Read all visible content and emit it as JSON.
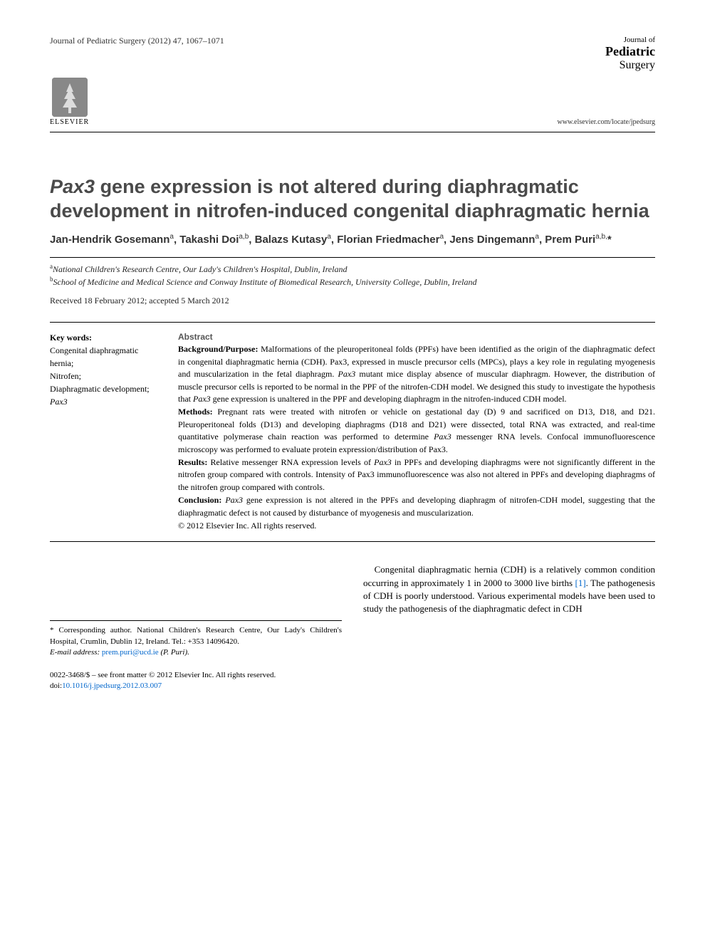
{
  "header": {
    "citation": "Journal of Pediatric Surgery (2012) 47, 1067–1071",
    "journal_label": "Journal of",
    "journal_main": "Pediatric",
    "journal_sub": "Surgery",
    "journal_url": "www.elsevier.com/locate/jpedsurg",
    "publisher": "ELSEVIER"
  },
  "article": {
    "title_prefix_italic": "Pax3",
    "title_rest": " gene expression is not altered during diaphragmatic development in nitrofen-induced congenital diaphragmatic hernia",
    "authors_html": "Jan-Hendrik Gosemann<sup>a</sup>, Takashi Doi<sup>a,b</sup>, Balazs Kutasy<sup>a</sup>, Florian Friedmacher<sup>a</sup>, Jens Dingemann<sup>a</sup>, Prem Puri<sup>a,b,</sup>*",
    "affiliations": [
      {
        "sup": "a",
        "text": "National Children's Research Centre, Our Lady's Children's Hospital, Dublin, Ireland"
      },
      {
        "sup": "b",
        "text": "School of Medicine and Medical Science and Conway Institute of Biomedical Research, University College, Dublin, Ireland"
      }
    ],
    "dates": "Received 18 February 2012; accepted 5 March 2012"
  },
  "keywords": {
    "label": "Key words:",
    "items": "Congenital diaphragmatic hernia;\nNitrofen;\nDiaphragmatic development;\nPax3"
  },
  "abstract": {
    "heading": "Abstract",
    "background_label": "Background/Purpose:",
    "background_text": " Malformations of the pleuroperitoneal folds (PPFs) have been identified as the origin of the diaphragmatic defect in congenital diaphragmatic hernia (CDH). Pax3, expressed in muscle precursor cells (MPCs), plays a key role in regulating myogenesis and muscularization in the fetal diaphragm. Pax3 mutant mice display absence of muscular diaphragm. However, the distribution of muscle precursor cells is reported to be normal in the PPF of the nitrofen-CDH model. We designed this study to investigate the hypothesis that Pax3 gene expression is unaltered in the PPF and developing diaphragm in the nitrofen-induced CDH model.",
    "methods_label": "Methods:",
    "methods_text": " Pregnant rats were treated with nitrofen or vehicle on gestational day (D) 9 and sacrificed on D13, D18, and D21. Pleuroperitoneal folds (D13) and developing diaphragms (D18 and D21) were dissected, total RNA was extracted, and real-time quantitative polymerase chain reaction was performed to determine Pax3 messenger RNA levels. Confocal immunofluorescence microscopy was performed to evaluate protein expression/distribution of Pax3.",
    "results_label": "Results:",
    "results_text": " Relative messenger RNA expression levels of Pax3 in PPFs and developing diaphragms were not significantly different in the nitrofen group compared with controls. Intensity of Pax3 immunofluorescence was also not altered in PPFs and developing diaphragms of the nitrofen group compared with controls.",
    "conclusion_label": "Conclusion:",
    "conclusion_text": " Pax3 gene expression is not altered in the PPFs and developing diaphragm of nitrofen-CDH model, suggesting that the diaphragmatic defect is not caused by disturbance of myogenesis and muscularization.",
    "copyright": "© 2012 Elsevier Inc. All rights reserved."
  },
  "corresponding": {
    "text": "* Corresponding author. National Children's Research Centre, Our Lady's Children's Hospital, Crumlin, Dublin 12, Ireland. Tel.: +353 14096420.",
    "email_label": "E-mail address:",
    "email": "prem.puri@ucd.ie",
    "email_attribution": "(P. Puri)."
  },
  "footer": {
    "issn_line": "0022-3468/$ – see front matter © 2012 Elsevier Inc. All rights reserved.",
    "doi_prefix": "doi:",
    "doi": "10.1016/j.jpedsurg.2012.03.007"
  },
  "body": {
    "intro_part1": "Congenital diaphragmatic hernia (CDH) is a relatively common condition occurring in approximately 1 in 2000 to 3000 live births ",
    "ref1": "[1]",
    "intro_part2": ". The pathogenesis of CDH is poorly understood. Various experimental models have been used to study the pathogenesis of the diaphragmatic defect in CDH"
  },
  "colors": {
    "title_color": "#4a4a4a",
    "link_color": "#0066cc",
    "text_color": "#000000"
  }
}
